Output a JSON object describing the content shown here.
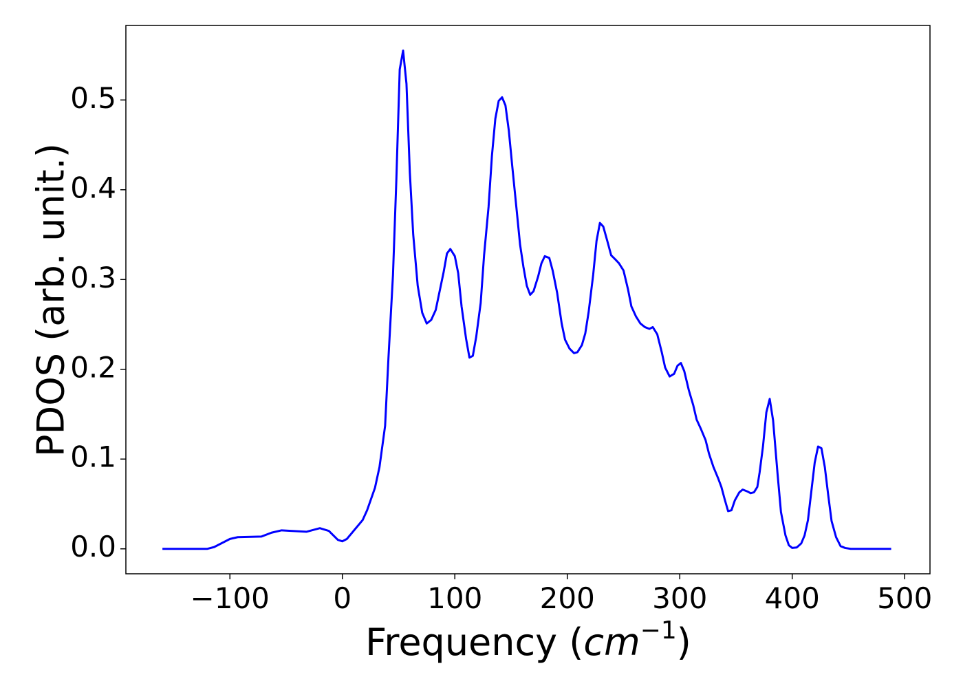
{
  "chart_data": {
    "type": "line",
    "x_label": {
      "prefix": "Frequency (",
      "unit": "cm",
      "exponent": "−1",
      "suffix": ")"
    },
    "y_label": "PDOS (arb. unit.)",
    "xlim": [
      -192.5,
      522.5
    ],
    "ylim": [
      -0.0278,
      0.583
    ],
    "xticks": [
      {
        "value": -100,
        "label": "−100"
      },
      0,
      100,
      200,
      300,
      400,
      500
    ],
    "yticks": [
      {
        "value": 0,
        "label": "0.0"
      },
      0.1,
      0.2,
      0.3,
      0.4,
      0.5
    ],
    "grid": false,
    "x": [
      -160,
      -140,
      -120,
      -114,
      -100,
      -93,
      -72,
      -63,
      -54,
      -32,
      -20,
      -12,
      -4,
      0,
      4,
      10,
      18,
      22,
      29,
      33,
      38,
      41,
      45,
      48,
      51,
      54,
      57,
      60,
      63,
      67,
      71,
      75,
      79,
      83,
      90,
      93,
      96,
      100,
      103,
      106,
      110,
      113,
      116,
      119,
      123,
      126,
      130,
      133,
      136,
      139,
      142,
      145,
      148,
      151,
      155,
      158,
      161,
      164,
      167,
      170,
      174,
      177,
      180,
      184,
      187,
      191,
      195,
      198,
      202,
      206,
      209,
      213,
      216,
      219,
      223,
      226,
      229,
      232,
      236,
      239,
      243,
      246,
      250,
      254,
      257,
      261,
      265,
      269,
      273,
      276,
      280,
      284,
      287,
      291,
      295,
      298,
      301,
      304,
      308,
      312,
      315,
      319,
      323,
      326,
      330,
      334,
      337,
      340,
      343,
      346,
      349,
      353,
      356,
      360,
      363,
      366,
      369,
      371,
      374,
      377,
      380,
      383,
      387,
      390,
      394,
      397,
      400,
      404,
      408,
      411,
      414,
      417,
      420,
      423,
      426,
      429,
      432,
      435,
      439,
      443,
      447,
      452,
      470,
      488
    ],
    "series": [
      {
        "name": "PDOS",
        "color": "#0000ff",
        "values": [
          0,
          0,
          0,
          0.002,
          0.011,
          0.013,
          0.0137,
          0.018,
          0.0206,
          0.019,
          0.023,
          0.02,
          0.01,
          0.0084,
          0.011,
          0.02,
          0.032,
          0.043,
          0.068,
          0.091,
          0.137,
          0.213,
          0.305,
          0.411,
          0.534,
          0.555,
          0.518,
          0.419,
          0.35,
          0.293,
          0.263,
          0.251,
          0.255,
          0.266,
          0.308,
          0.329,
          0.334,
          0.326,
          0.307,
          0.27,
          0.234,
          0.213,
          0.215,
          0.236,
          0.274,
          0.327,
          0.381,
          0.438,
          0.479,
          0.499,
          0.503,
          0.494,
          0.466,
          0.427,
          0.377,
          0.339,
          0.314,
          0.293,
          0.283,
          0.287,
          0.303,
          0.318,
          0.326,
          0.324,
          0.31,
          0.285,
          0.251,
          0.233,
          0.223,
          0.218,
          0.219,
          0.227,
          0.24,
          0.264,
          0.305,
          0.343,
          0.363,
          0.359,
          0.341,
          0.327,
          0.322,
          0.318,
          0.31,
          0.289,
          0.27,
          0.259,
          0.251,
          0.247,
          0.245,
          0.247,
          0.239,
          0.219,
          0.202,
          0.192,
          0.195,
          0.204,
          0.207,
          0.198,
          0.177,
          0.16,
          0.144,
          0.133,
          0.121,
          0.106,
          0.091,
          0.079,
          0.069,
          0.055,
          0.042,
          0.043,
          0.054,
          0.063,
          0.066,
          0.064,
          0.062,
          0.063,
          0.069,
          0.085,
          0.114,
          0.152,
          0.167,
          0.143,
          0.083,
          0.041,
          0.015,
          0.004,
          0.001,
          0.0015,
          0.006,
          0.015,
          0.032,
          0.064,
          0.096,
          0.114,
          0.112,
          0.091,
          0.06,
          0.031,
          0.013,
          0.003,
          0.001,
          0,
          0,
          0
        ]
      }
    ]
  }
}
